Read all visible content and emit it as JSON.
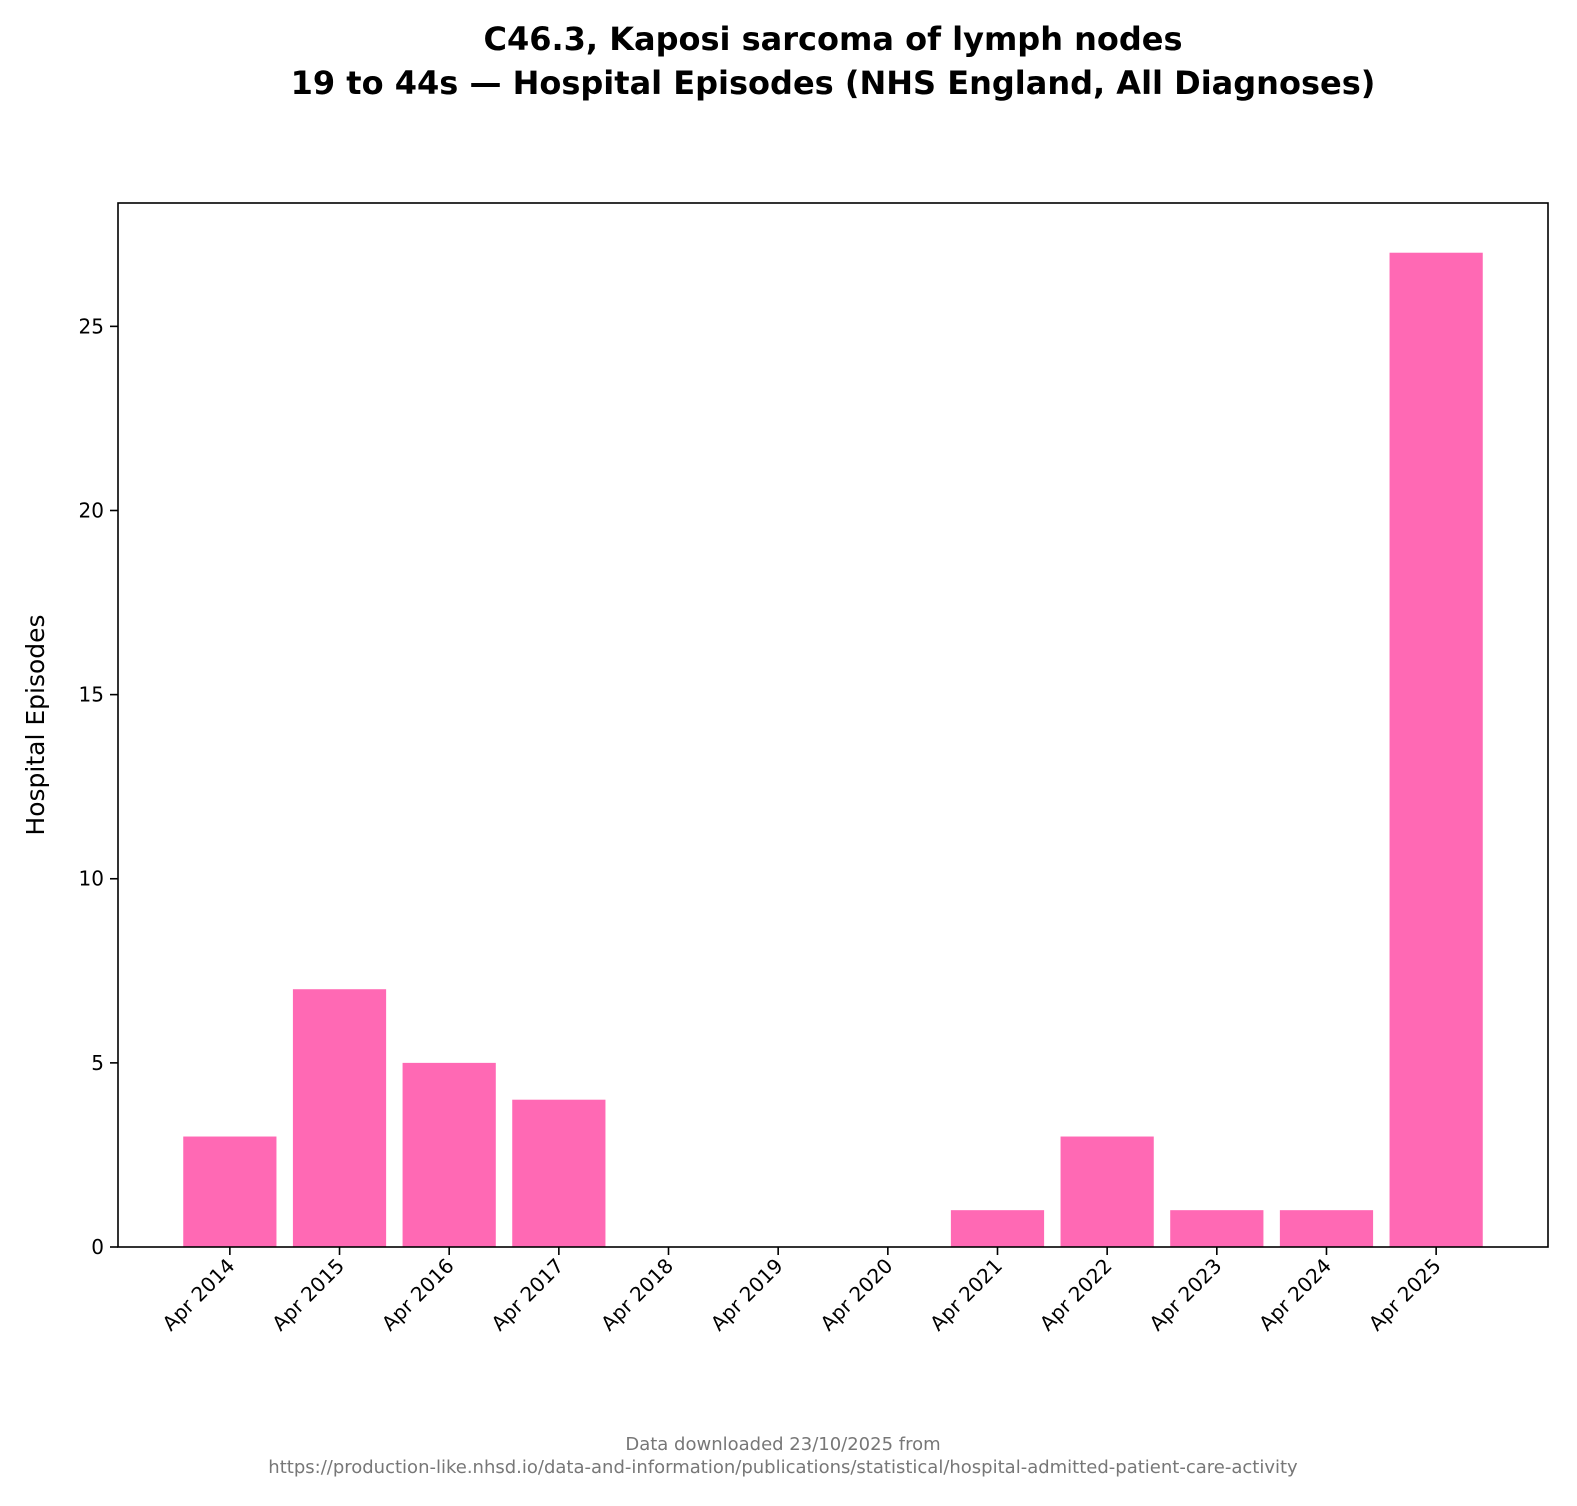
{
  "chart_data": {
    "type": "bar",
    "title_line1": "C46.3, Kaposi sarcoma of lymph nodes",
    "title_line2": "19 to 44s — Hospital Episodes (NHS England, All Diagnoses)",
    "xlabel": "",
    "ylabel": "Hospital Episodes",
    "categories": [
      "Apr 2014",
      "Apr 2015",
      "Apr 2016",
      "Apr 2017",
      "Apr 2018",
      "Apr 2019",
      "Apr 2020",
      "Apr 2021",
      "Apr 2022",
      "Apr 2023",
      "Apr 2024",
      "Apr 2025"
    ],
    "values": [
      3,
      7,
      5,
      4,
      0,
      0,
      0,
      1,
      3,
      1,
      1,
      27
    ],
    "ylim": [
      0,
      28.35
    ],
    "yticks": [
      0,
      5,
      10,
      15,
      20,
      25
    ],
    "grid": false,
    "bar_color": "#ff69b4",
    "footer_line1": "Data downloaded 23/10/2025 from",
    "footer_line2": "https://production-like.nhsd.io/data-and-information/publications/statistical/hospital-admitted-patient-care-activity"
  }
}
